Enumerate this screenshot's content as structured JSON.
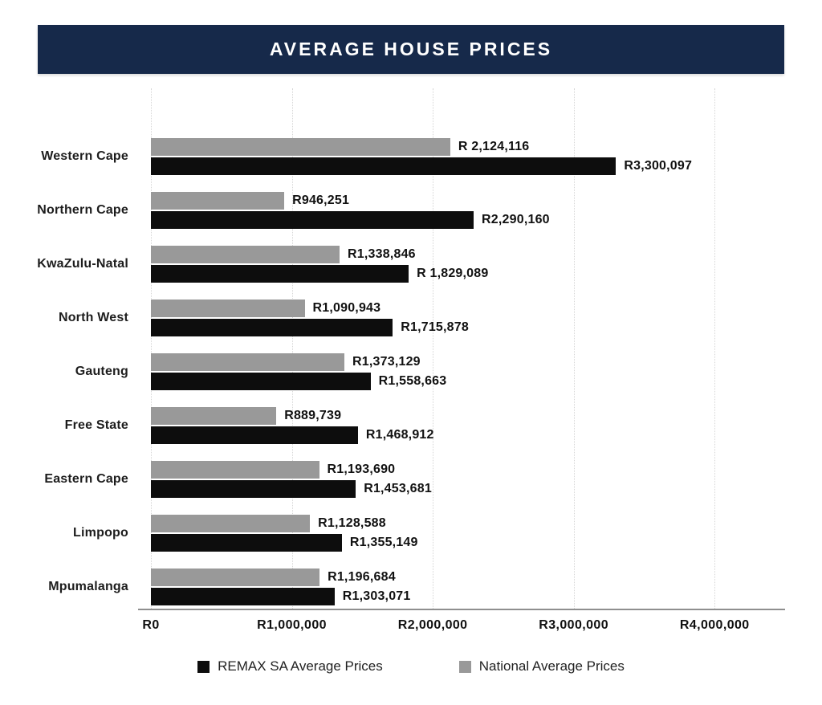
{
  "title": "AVERAGE HOUSE PRICES",
  "colors": {
    "title_bar_bg": "#16294a",
    "title_text": "#ffffff",
    "remax_bar": "#0d0d0d",
    "national_bar": "#999999",
    "gridline": "#d6d6d6",
    "axis_line": "#8f8f8f",
    "label_text": "#111111"
  },
  "chart_data": {
    "type": "bar",
    "orientation": "horizontal",
    "title": "AVERAGE HOUSE PRICES",
    "xlabel": "",
    "ylabel": "",
    "grid": "vertical-dotted",
    "legend_position": "bottom",
    "xlim": [
      0,
      4500000
    ],
    "categories": [
      "Western Cape",
      "Northern Cape",
      "KwaZulu-Natal",
      "North West",
      "Gauteng",
      "Free State",
      "Eastern Cape",
      "Limpopo",
      "Mpumalanga"
    ],
    "series": [
      {
        "name": "National Average Prices",
        "color": "#999999",
        "row_position": "top",
        "values": [
          2124116,
          946251,
          1338846,
          1090943,
          1373129,
          889739,
          1193690,
          1128588,
          1196684
        ],
        "labels": [
          "R 2,124,116",
          "R946,251",
          "R1,338,846",
          "R1,090,943",
          "R1,373,129",
          "R889,739",
          "R1,193,690",
          "R1,128,588",
          "R1,196,684"
        ]
      },
      {
        "name": "REMAX SA Average Prices",
        "color": "#0d0d0d",
        "row_position": "bottom",
        "values": [
          3300097,
          2290160,
          1829089,
          1715878,
          1558663,
          1468912,
          1453681,
          1355149,
          1303071
        ],
        "labels": [
          "R3,300,097",
          "R2,290,160",
          "R 1,829,089",
          "R1,715,878",
          "R1,558,663",
          "R1,468,912",
          "R1,453,681",
          "R1,355,149",
          "R1,303,071"
        ]
      }
    ],
    "x_ticks": [
      {
        "value": 0,
        "label": "R0"
      },
      {
        "value": 1000000,
        "label": "R1,000,000"
      },
      {
        "value": 2000000,
        "label": "R2,000,000"
      },
      {
        "value": 3000000,
        "label": "R3,000,000"
      },
      {
        "value": 4000000,
        "label": "R4,000,000"
      }
    ]
  },
  "legend": {
    "items": [
      {
        "label": "REMAX SA Average Prices",
        "color": "#0d0d0d"
      },
      {
        "label": "National Average Prices",
        "color": "#999999"
      }
    ]
  }
}
